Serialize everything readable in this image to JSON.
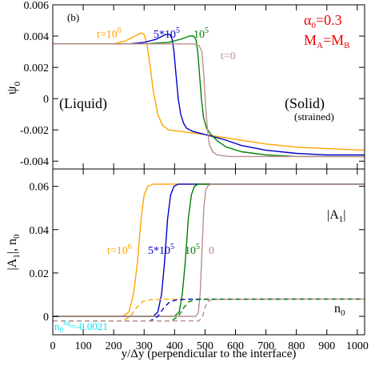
{
  "chart_data": [
    {
      "type": "line",
      "panel_label": "(b)",
      "ylabel": "ψ0",
      "xlim": [
        0,
        1024
      ],
      "ylim": [
        -0.0045,
        0.006
      ],
      "yticks": [
        -0.004,
        -0.002,
        0,
        0.002,
        0.004,
        0.006
      ],
      "ytick_labels": [
        "-0.004",
        "-0.002",
        "0",
        "0.002",
        "0.004",
        "0.006"
      ],
      "grid": false,
      "annotations": {
        "alpha": "α0=0.3",
        "mobility": "MA=MB",
        "liquid": "(Liquid)",
        "solid": "(Solid)",
        "strained": "(strained)"
      },
      "series": [
        {
          "name": "t=10^6",
          "color": "#ffa500",
          "x": [
            0,
            200,
            240,
            270,
            290,
            300,
            310,
            320,
            330,
            345,
            360,
            380,
            420,
            500,
            600,
            700,
            800,
            900,
            1024
          ],
          "y": [
            0.0035,
            0.0035,
            0.0037,
            0.004,
            0.0042,
            0.0041,
            0.0034,
            0.002,
            0.0005,
            -0.001,
            -0.0017,
            -0.002,
            -0.0021,
            -0.0023,
            -0.0026,
            -0.0029,
            -0.0031,
            -0.0032,
            -0.0033
          ]
        },
        {
          "name": "5*10^5",
          "color": "#0000cc",
          "x": [
            0,
            250,
            300,
            340,
            370,
            385,
            392,
            398,
            405,
            412,
            420,
            430,
            440,
            460,
            500,
            560,
            620,
            700,
            800,
            900,
            1024
          ],
          "y": [
            0.0035,
            0.0035,
            0.0036,
            0.0038,
            0.0041,
            0.0041,
            0.0038,
            0.003,
            0.0015,
            0.0,
            -0.001,
            -0.0016,
            -0.0019,
            -0.0021,
            -0.0023,
            -0.0026,
            -0.003,
            -0.0033,
            -0.0035,
            -0.0036,
            -0.0036
          ]
        },
        {
          "name": "10^5",
          "color": "#008000",
          "x": [
            0,
            300,
            380,
            420,
            450,
            462,
            470,
            476,
            482,
            488,
            495,
            505,
            520,
            540,
            570,
            620,
            700,
            800,
            900,
            1024
          ],
          "y": [
            0.0035,
            0.0035,
            0.0036,
            0.0038,
            0.004,
            0.004,
            0.0038,
            0.003,
            0.0015,
            0.0,
            -0.0012,
            -0.0019,
            -0.0023,
            -0.0027,
            -0.0031,
            -0.0034,
            -0.0036,
            -0.0037,
            -0.0037,
            -0.0037
          ]
        },
        {
          "name": "t=0",
          "color": "#bc8f8f",
          "x": [
            0,
            460,
            480,
            490,
            496,
            502,
            508,
            515,
            525,
            540,
            580,
            700,
            1024
          ],
          "y": [
            0.0035,
            0.0035,
            0.0034,
            0.003,
            0.0015,
            -0.0005,
            -0.002,
            -0.003,
            -0.0034,
            -0.0036,
            -0.0037,
            -0.0037,
            -0.0037
          ]
        }
      ]
    },
    {
      "type": "line",
      "ylabel": "|A1|, n0",
      "xlabel": "y/Δy (perpendicular to the interface)",
      "xlim": [
        0,
        1024
      ],
      "ylim": [
        -0.0085,
        0.068
      ],
      "xticks": [
        0,
        100,
        200,
        300,
        400,
        500,
        600,
        700,
        800,
        900,
        1000
      ],
      "xtick_labels": [
        "0",
        "100",
        "200",
        "300",
        "400",
        "500",
        "600",
        "700",
        "800",
        "900",
        "1000"
      ],
      "yticks": [
        0,
        0.02,
        0.04,
        0.06
      ],
      "ytick_labels": [
        "0",
        "0.02",
        "0.04",
        "0.06"
      ],
      "grid": false,
      "annotations": {
        "a1_label": "|A1|",
        "n0_label": "n0",
        "n0_initial": "n0liq=-0.0021",
        "t_label": "t=10^6",
        "t_label_2": "5*10^5",
        "t_label_3": "10^5",
        "t_label_4": "0"
      },
      "series": [
        {
          "name": "|A1| t=10^6",
          "style": "solid",
          "color": "#ffa500",
          "x": [
            0,
            230,
            250,
            265,
            278,
            290,
            300,
            312,
            330,
            1024
          ],
          "y": [
            0,
            0,
            0.002,
            0.01,
            0.025,
            0.045,
            0.056,
            0.06,
            0.061,
            0.061
          ]
        },
        {
          "name": "|A1| 5*10^5",
          "style": "solid",
          "color": "#0000cc",
          "x": [
            0,
            330,
            345,
            357,
            367,
            377,
            387,
            398,
            412,
            1024
          ],
          "y": [
            0,
            0,
            0.002,
            0.01,
            0.025,
            0.045,
            0.056,
            0.06,
            0.061,
            0.061
          ]
        },
        {
          "name": "|A1| 10^5",
          "style": "solid",
          "color": "#008000",
          "x": [
            0,
            400,
            415,
            425,
            435,
            445,
            455,
            465,
            478,
            1024
          ],
          "y": [
            0,
            0,
            0.002,
            0.01,
            0.025,
            0.045,
            0.056,
            0.06,
            0.061,
            0.061
          ]
        },
        {
          "name": "|A1| 0",
          "style": "solid",
          "color": "#bc8f8f",
          "x": [
            0,
            470,
            478,
            484,
            490,
            496,
            502,
            508,
            518,
            1024
          ],
          "y": [
            0,
            0,
            0.002,
            0.01,
            0.03,
            0.05,
            0.058,
            0.06,
            0.061,
            0.061
          ]
        },
        {
          "name": "n0 t=10^6",
          "style": "dashed",
          "color": "#ffa500",
          "x": [
            0,
            230,
            255,
            275,
            295,
            320,
            360,
            1024
          ],
          "y": [
            -0.0021,
            -0.0021,
            0.0,
            0.004,
            0.0068,
            0.0077,
            0.0079,
            0.008
          ]
        },
        {
          "name": "n0 5*10^5",
          "style": "dashed",
          "color": "#0000cc",
          "x": [
            0,
            320,
            345,
            365,
            385,
            410,
            450,
            1024
          ],
          "y": [
            -0.0021,
            -0.0021,
            0.0,
            0.004,
            0.0068,
            0.0077,
            0.0079,
            0.008
          ]
        },
        {
          "name": "n0 10^5",
          "style": "dashed",
          "color": "#008000",
          "x": [
            0,
            390,
            412,
            430,
            448,
            470,
            510,
            1024
          ],
          "y": [
            -0.0021,
            -0.0021,
            0.0,
            0.004,
            0.0068,
            0.0077,
            0.0079,
            0.008
          ]
        },
        {
          "name": "n0 0",
          "style": "dashed",
          "color": "#bc8f8f",
          "x": [
            0,
            480,
            492,
            500,
            508,
            520,
            560,
            1024
          ],
          "y": [
            -0.0021,
            -0.0021,
            0.0,
            0.004,
            0.0068,
            0.0077,
            0.0079,
            0.008
          ]
        }
      ]
    }
  ]
}
